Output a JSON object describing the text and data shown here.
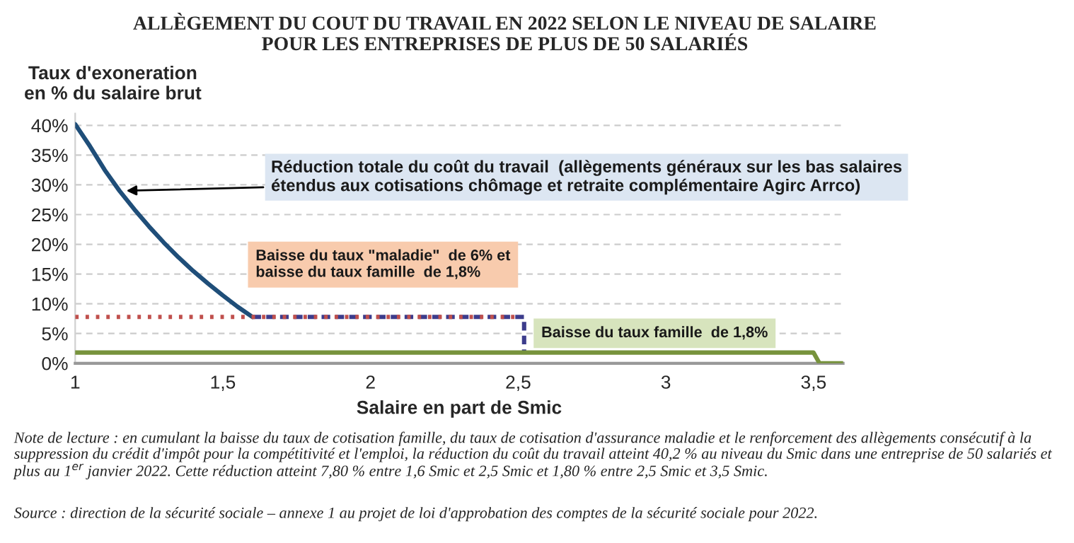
{
  "chart_data": {
    "type": "line",
    "title": "ALLÈGEMENT DU COUT DU TRAVAIL EN 2022 SELON LE NIVEAU DE SALAIRE\nPOUR LES ENTREPRISES DE PLUS DE 50 SALARIÉS",
    "ylabel": "Taux d'exoneration\nen % du salaire brut",
    "xlabel": "Salaire en part de Smic",
    "series": [
      {
        "color": "#3c3c8c",
        "line_style": "dashed",
        "x": [
          1.6,
          2.52,
          2.52
        ],
        "values": [
          7.8,
          7.8,
          1.8
        ]
      },
      {
        "color": "#77933c",
        "line_style": "solid",
        "x": [
          1,
          3.5,
          3.52,
          3.6
        ],
        "values": [
          1.8,
          1.8,
          0,
          0
        ]
      },
      {
        "color": "#1f4e79",
        "line_style": "solid",
        "x": [
          1,
          1.05,
          1.1,
          1.15,
          1.2,
          1.25,
          1.3,
          1.35,
          1.4,
          1.45,
          1.5,
          1.55,
          1.6
        ],
        "values": [
          40.2,
          36.5,
          32.5,
          29,
          25.9,
          23,
          20.3,
          17.8,
          15.5,
          13.4,
          11.4,
          9.5,
          7.8
        ]
      },
      {
        "color": "#c0504d",
        "line_style": "dotted",
        "x": [
          1,
          2.5
        ],
        "values": [
          7.8,
          7.8
        ]
      }
    ],
    "xlim": [
      1,
      3.6
    ],
    "xticks": [
      1,
      {
        "value": 1.5,
        "label": "1,5"
      },
      2,
      {
        "value": 2.5,
        "label": "2,5"
      },
      3,
      {
        "value": 3.5,
        "label": "3,5"
      }
    ],
    "ylim": [
      0,
      42
    ],
    "yticks": [
      {
        "value": 0,
        "label": "0%"
      },
      {
        "value": 5,
        "label": "5%"
      },
      {
        "value": 10,
        "label": "10%"
      },
      {
        "value": 15,
        "label": "15%"
      },
      {
        "value": 20,
        "label": "20%"
      },
      {
        "value": 25,
        "label": "25%"
      },
      {
        "value": 30,
        "label": "30%"
      },
      {
        "value": 35,
        "label": "35%"
      },
      {
        "value": 40,
        "label": "40%"
      }
    ],
    "grid": "y",
    "marker": "none",
    "annotations": [
      {
        "text": "Réduction totale du coût du travail  (allègements généraux sur les bas salaires\nétendus aux cotisations chômage et retraite complémentaire Agirc Arrco)",
        "x": 1.16,
        "y": 29
      },
      "Baisse du taux \"maladie\"  de 6% et\nbaisse du taux famille  de 1,8%",
      "Baisse du taux famille  de 1,8%",
      "Note de lecture : en cumulant la baisse du taux de cotisation famille, du taux de cotisation d'assurance maladie et le renforcement des allègements consécutif à la suppression du crédit d'impôt pour la compétitivité et l'emploi, la réduction du coût du travail atteint 40,2 % au niveau du Smic dans une entreprise de 50 salariés et plus au 1$^{er}$ janvier 2022. Cette réduction atteint 7,80 % entre 1,6 Smic et 2,5 Smic et 1,80 % entre 2,5 Smic et 3,5 Smic.",
      "Source : direction de la sécurité sociale – annexe 1 au projet de loi d'approbation des comptes de la sécurité sociale pour 2022."
    ]
  }
}
